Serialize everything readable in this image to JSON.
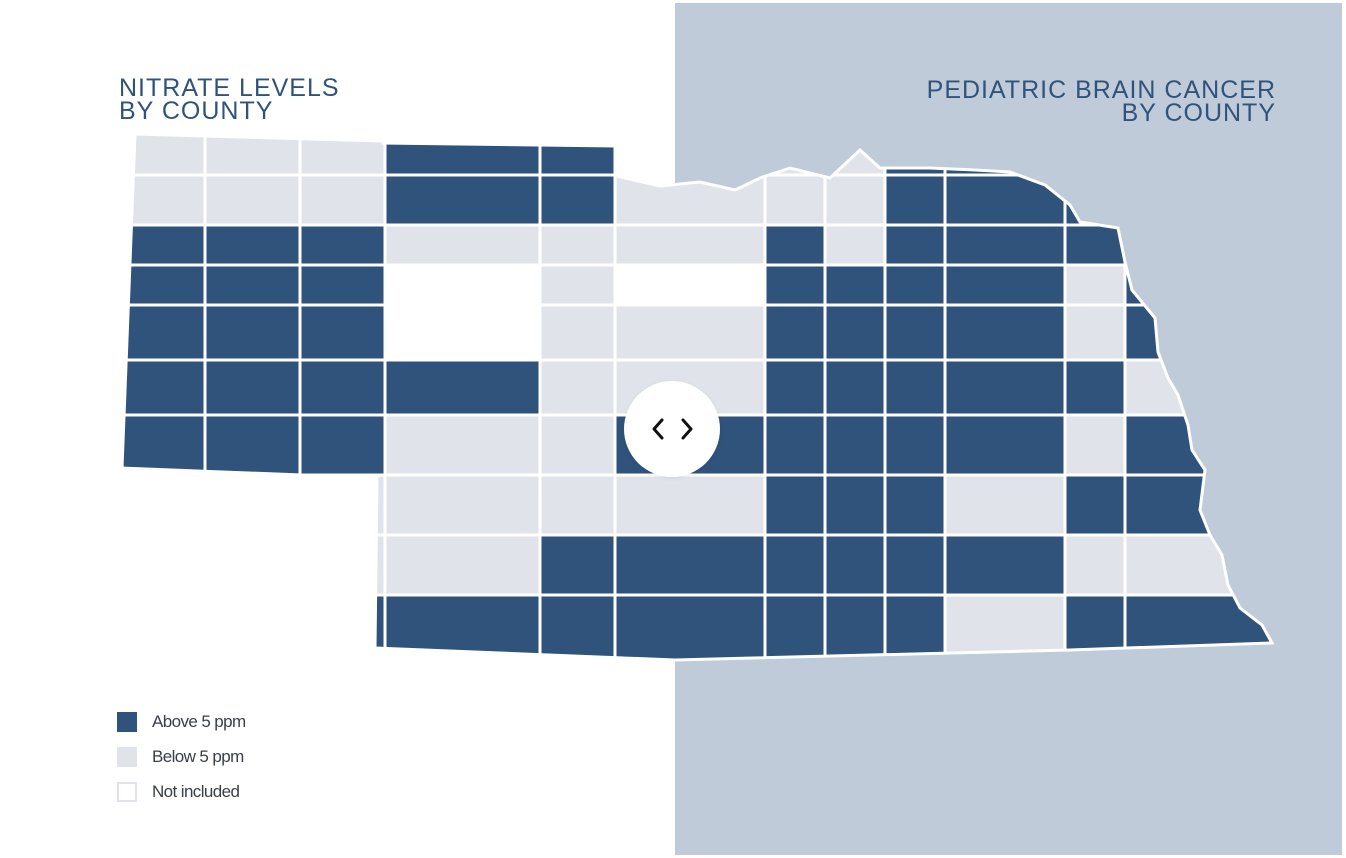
{
  "left_panel": {
    "title_line1": "NITRATE LEVELS",
    "title_line2": "BY COUNTY"
  },
  "right_panel": {
    "title_line1": "PEDIATRIC BRAIN CANCER",
    "title_line2": "BY COUNTY"
  },
  "legend": {
    "items": [
      {
        "label": "Above 5 ppm",
        "color": "#30537b"
      },
      {
        "label": "Below 5 ppm",
        "color": "#e0e4ea"
      },
      {
        "label": "Not included",
        "color": "#ffffff"
      }
    ]
  },
  "colors": {
    "high": "#30537b",
    "low": "#e0e4ea",
    "excluded": "#ffffff",
    "county_border": "#ffffff",
    "right_background": "#bfcbd8",
    "title": "#30537b",
    "legend_outline": "#e0e4ea"
  },
  "slider": {
    "left_icon": "chevron-left-icon",
    "right_icon": "chevron-right-icon"
  },
  "county_status": [
    "low",
    "low",
    "low",
    "high",
    "high",
    "low",
    "low",
    "low",
    "high",
    "high",
    "low",
    "low",
    "low",
    "low",
    "low",
    "high",
    "high",
    "low",
    "low",
    "low",
    "high",
    "high",
    "high",
    "low",
    "high",
    "high",
    "high",
    "low",
    "low",
    "low",
    "high",
    "low",
    "high",
    "high",
    "high",
    "low",
    "high",
    "high",
    "high",
    "excluded",
    "low",
    "excluded",
    "high",
    "high",
    "high",
    "high",
    "low",
    "high",
    "high",
    "high",
    "high",
    "excluded",
    "low",
    "low",
    "high",
    "high",
    "high",
    "high",
    "low",
    "high",
    "high",
    "high",
    "high",
    "high",
    "low",
    "low",
    "high",
    "high",
    "high",
    "high",
    "high",
    "low",
    "high",
    "high",
    "high",
    "low",
    "low",
    "high",
    "high",
    "high",
    "high",
    "high",
    "low",
    "high",
    "excluded",
    "excluded",
    "low",
    "low",
    "low",
    "low",
    "high",
    "high",
    "high",
    "low",
    "high",
    "high",
    "excluded",
    "excluded",
    "low",
    "low",
    "high",
    "high",
    "high",
    "high",
    "high",
    "high",
    "low",
    "low",
    "excluded",
    "excluded",
    "high",
    "high",
    "high",
    "high",
    "high",
    "high",
    "high",
    "low",
    "high",
    "high",
    "excluded",
    "excluded",
    "high",
    "high",
    "high",
    "high",
    "excluded",
    "high",
    "low",
    "high",
    "high",
    "high"
  ]
}
